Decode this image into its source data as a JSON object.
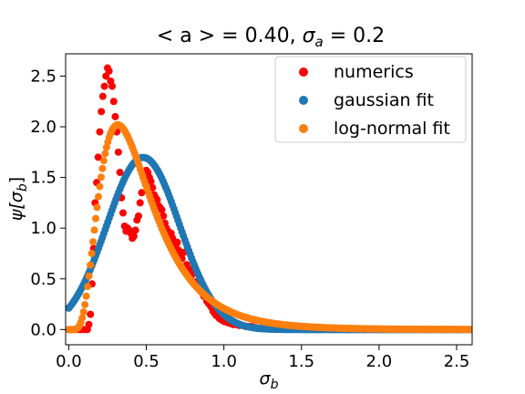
{
  "chart_data": {
    "type": "scatter",
    "title_parts": [
      "< a > = 0.40, ",
      "σ",
      "a",
      " = 0.2"
    ],
    "xlabel_parts": [
      "σ",
      "b"
    ],
    "ylabel_parts": [
      "ψ[σ",
      "b",
      "]"
    ],
    "xlim": [
      -0.02,
      2.6
    ],
    "ylim": [
      -0.15,
      2.72
    ],
    "xticks": [
      0.0,
      0.5,
      1.0,
      1.5,
      2.0,
      2.5
    ],
    "xtick_labels": [
      "0.0",
      "0.5",
      "1.0",
      "1.5",
      "2.0",
      "2.5"
    ],
    "yticks": [
      0.0,
      0.5,
      1.0,
      1.5,
      2.0,
      2.5
    ],
    "ytick_labels": [
      "0.0",
      "0.5",
      "1.0",
      "1.5",
      "2.0",
      "2.5"
    ],
    "grid": false,
    "legend_position": "top-right",
    "series": [
      {
        "name": "numerics",
        "color": "#ff0000",
        "x": [
          0.0,
          0.02,
          0.04,
          0.06,
          0.08,
          0.1,
          0.12,
          0.13,
          0.14,
          0.15,
          0.16,
          0.17,
          0.18,
          0.19,
          0.2,
          0.21,
          0.22,
          0.23,
          0.24,
          0.25,
          0.26,
          0.27,
          0.28,
          0.29,
          0.3,
          0.31,
          0.32,
          0.33,
          0.34,
          0.35,
          0.36,
          0.37,
          0.38,
          0.39,
          0.4,
          0.41,
          0.42,
          0.43,
          0.44,
          0.45,
          0.46,
          0.47,
          0.48,
          0.49,
          0.5,
          0.51,
          0.52,
          0.53,
          0.54,
          0.55,
          0.56,
          0.57,
          0.58,
          0.59,
          0.6,
          0.61,
          0.62,
          0.63,
          0.64,
          0.65,
          0.66,
          0.67,
          0.68,
          0.69,
          0.7,
          0.71,
          0.72,
          0.73,
          0.74,
          0.75,
          0.76,
          0.77,
          0.78,
          0.79,
          0.8,
          0.81,
          0.82,
          0.83,
          0.84,
          0.85,
          0.86,
          0.87,
          0.88,
          0.89,
          0.9,
          0.91,
          0.92,
          0.93,
          0.94,
          0.95,
          0.96,
          0.97,
          0.98,
          0.99,
          1.0,
          1.02,
          1.04,
          1.06,
          1.08,
          1.1,
          1.12,
          1.14,
          1.16,
          1.18,
          1.2,
          1.25,
          1.3,
          1.35,
          1.4,
          1.45,
          1.5,
          1.6,
          1.7,
          1.8,
          1.9,
          2.0,
          2.1,
          2.2,
          2.3,
          2.4,
          2.5,
          2.6
        ],
        "y": [
          0.0,
          0.0,
          0.0,
          0.0,
          0.0,
          0.0,
          0.0,
          0.05,
          0.15,
          0.45,
          0.8,
          1.25,
          1.45,
          1.7,
          1.95,
          2.15,
          2.3,
          2.4,
          2.5,
          2.58,
          2.55,
          2.45,
          2.4,
          2.25,
          2.1,
          1.95,
          1.75,
          1.55,
          1.3,
          1.15,
          1.02,
          0.97,
          1.0,
          0.98,
          0.95,
          0.9,
          0.92,
          0.98,
          1.08,
          1.12,
          1.25,
          1.35,
          1.5,
          1.55,
          1.57,
          1.55,
          1.5,
          1.46,
          1.4,
          1.33,
          1.3,
          1.28,
          1.22,
          1.2,
          1.18,
          1.12,
          1.05,
          1.0,
          0.97,
          0.92,
          0.95,
          0.9,
          0.86,
          0.82,
          0.86,
          0.78,
          0.73,
          0.7,
          0.76,
          0.62,
          0.64,
          0.6,
          0.55,
          0.53,
          0.58,
          0.46,
          0.47,
          0.42,
          0.42,
          0.38,
          0.36,
          0.33,
          0.33,
          0.28,
          0.26,
          0.24,
          0.22,
          0.18,
          0.16,
          0.14,
          0.13,
          0.11,
          0.1,
          0.09,
          0.08,
          0.07,
          0.06,
          0.05,
          0.05,
          0.04,
          0.04,
          0.03,
          0.03,
          0.03,
          0.02,
          0.02,
          0.02,
          0.01,
          0.01,
          0.01,
          0.01,
          0.0,
          0.0,
          0.0,
          0.0,
          0.0,
          0.0,
          0.0,
          0.0,
          0.0,
          0.0,
          0.0
        ]
      },
      {
        "name": "gaussian fit",
        "color": "#1f77b4",
        "curve": "gaussian",
        "mean": 0.48,
        "sd": 0.235,
        "x_range": [
          0.0,
          2.6
        ],
        "points": 300
      },
      {
        "name": "log-normal fit",
        "color": "#ff7f0e",
        "curve": "lognormal",
        "mu": -0.86,
        "sigma": 0.54,
        "x_range": [
          0.0,
          2.6
        ],
        "points": 300
      }
    ]
  }
}
